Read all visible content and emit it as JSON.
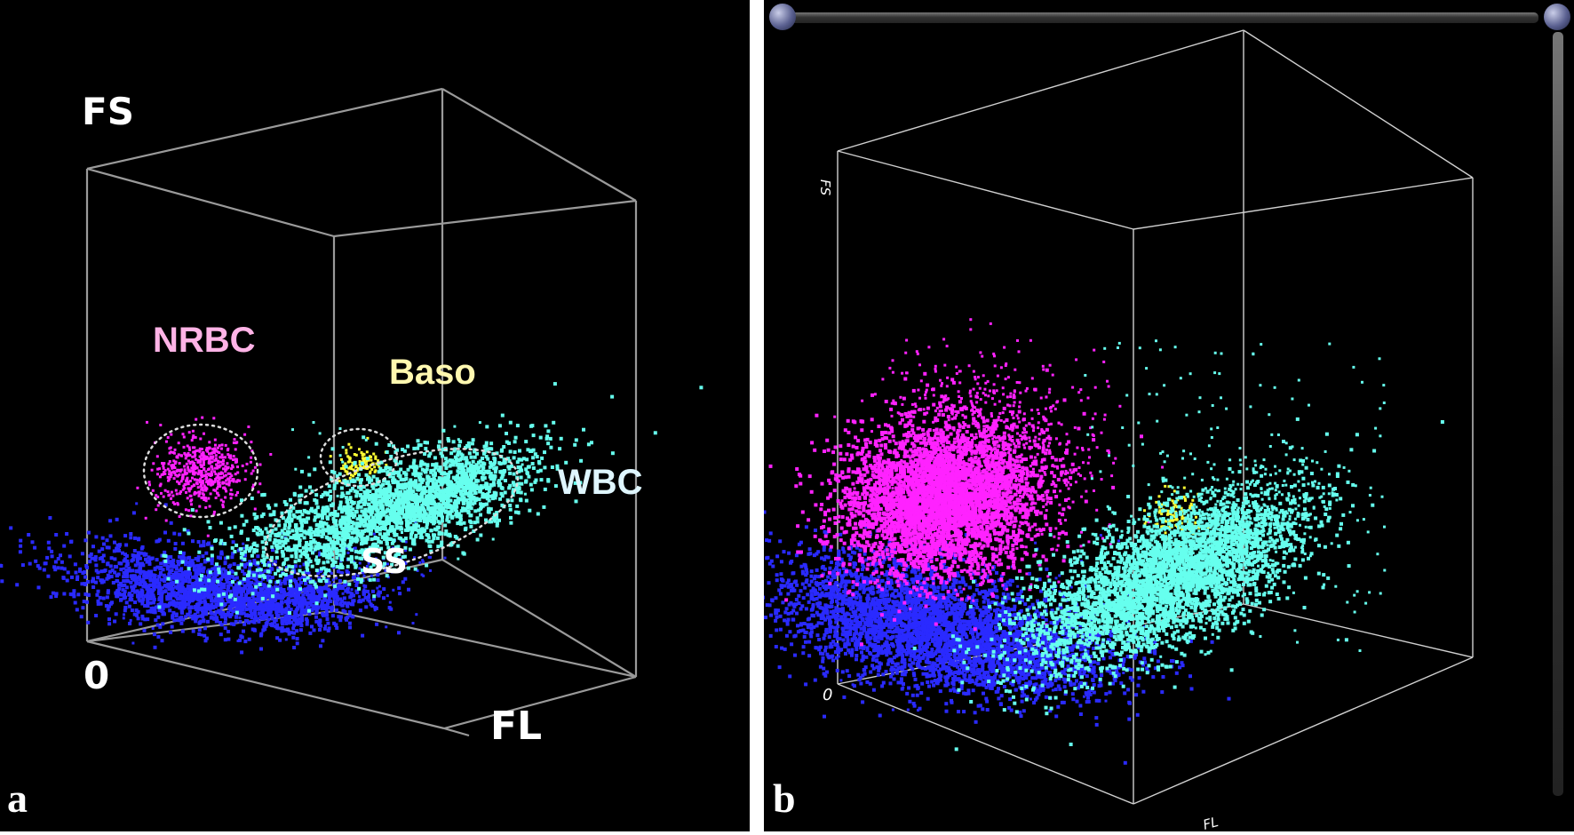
{
  "panels": [
    {
      "id": "a",
      "letter": "a",
      "axes": {
        "fs": "FS",
        "fl": "FL",
        "ss": "SS",
        "origin": "0"
      },
      "cluster_labels": {
        "nrbc": "NRBC",
        "baso": "Baso",
        "wbc": "WBC"
      }
    },
    {
      "id": "b",
      "letter": "b",
      "axes": {
        "fs": "FS",
        "fl": "FL",
        "origin": "0"
      }
    }
  ],
  "colors": {
    "nrbc": "#ff22ff",
    "nrbc_label": "#ffb3e6",
    "baso": "#ffff33",
    "baso_label": "#fff8b0",
    "wbc": "#66ffee",
    "wbc_label": "#dff6ff",
    "rbc_ghost": "#2a2aff",
    "box": "#9a9a9a",
    "ellipse": "#dddddd"
  },
  "chart_data": {
    "type": "scatter",
    "dimensions": [
      "FS",
      "FL",
      "SS"
    ],
    "series": [
      {
        "name": "NRBC",
        "color": "#ff22ff"
      },
      {
        "name": "Baso",
        "color": "#ffff33"
      },
      {
        "name": "WBC",
        "color": "#66ffee"
      },
      {
        "color": "#2a2aff"
      }
    ],
    "grid": false,
    "legend": "none"
  }
}
